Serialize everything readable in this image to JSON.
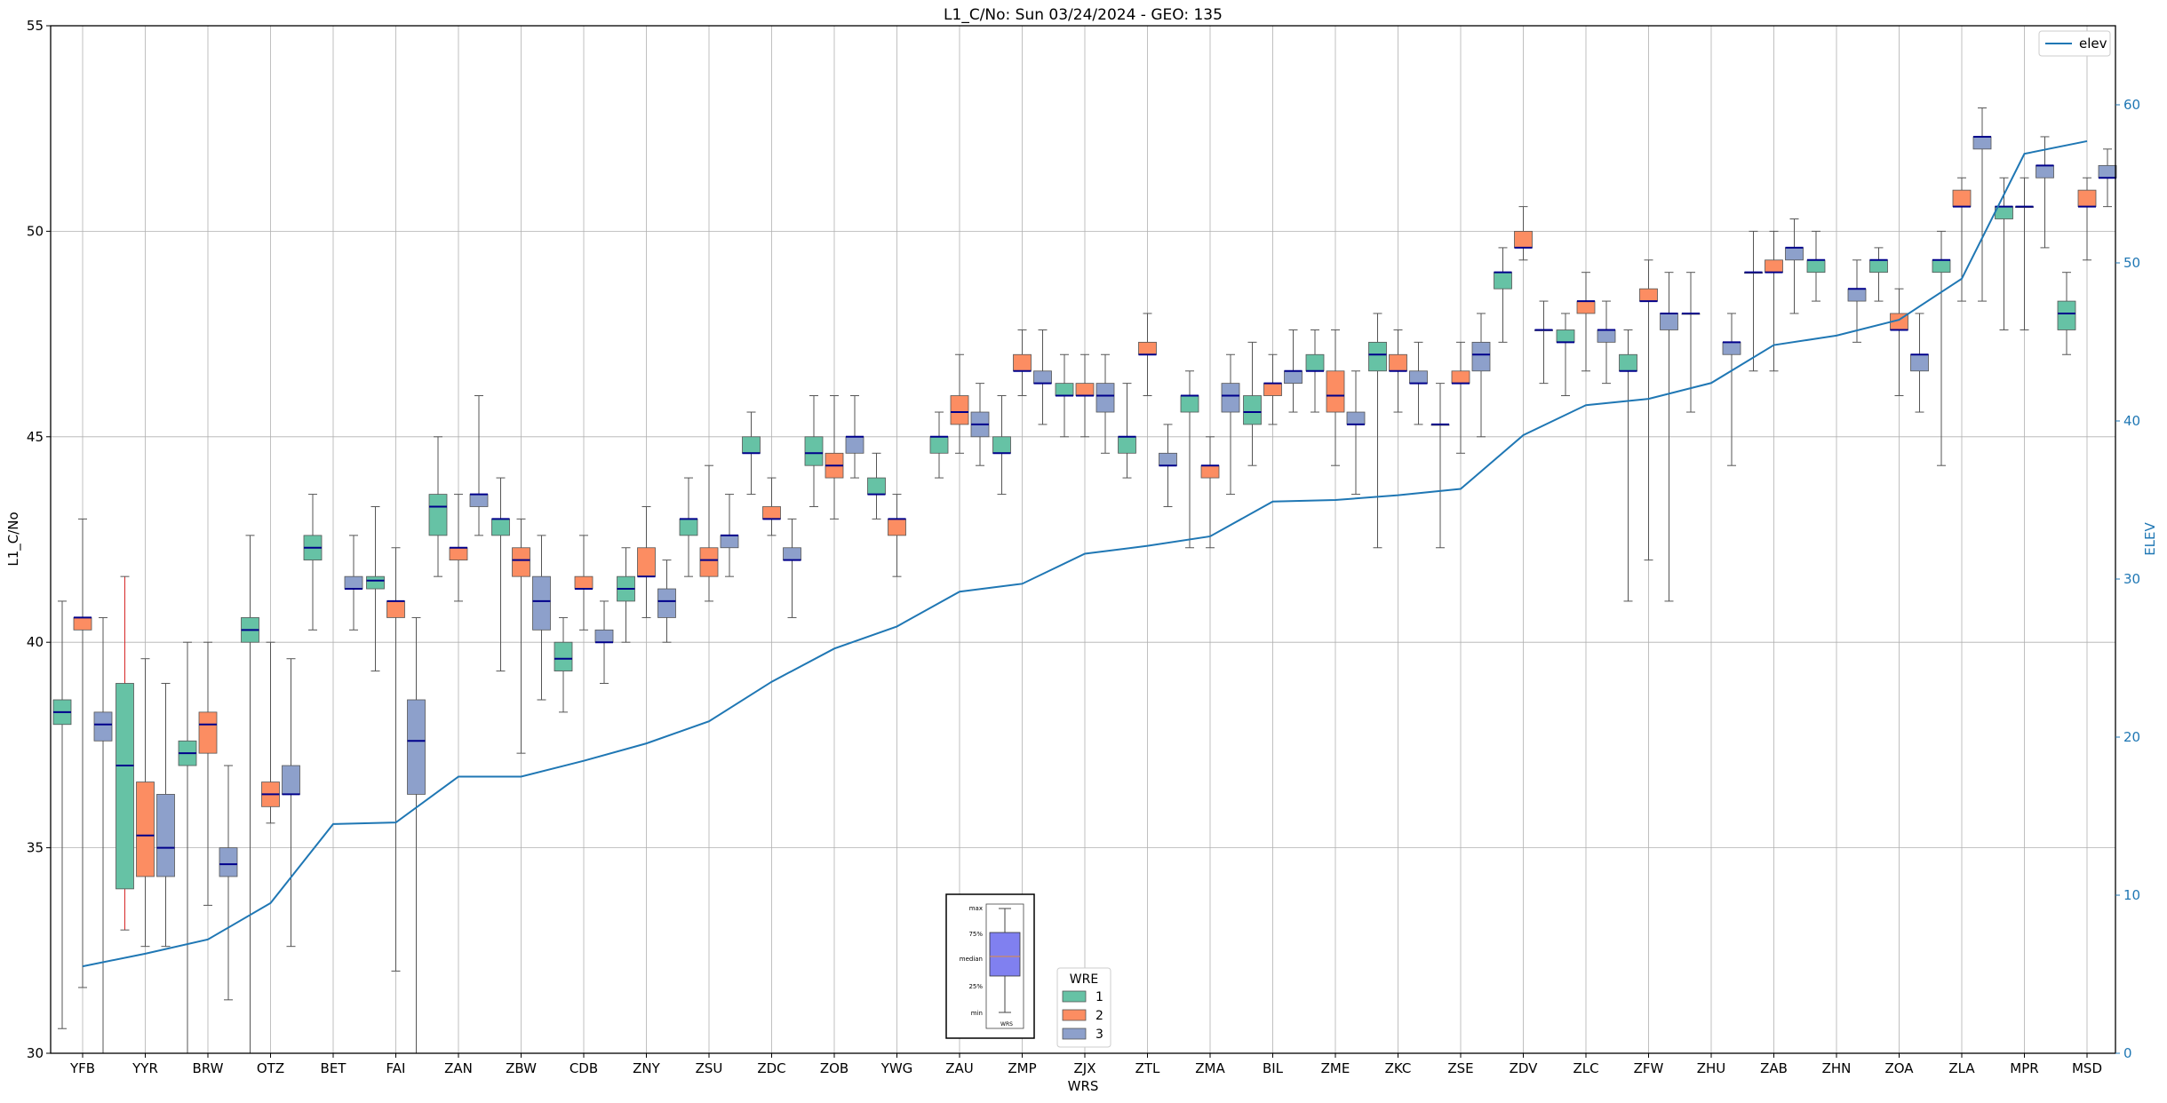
{
  "chart_data": {
    "type": "box",
    "title": "L1_C/No: Sun 03/24/2024 - GEO: 135",
    "xlabel": "WRS",
    "ylabel": "L1_C/No",
    "y2label": "ELEV",
    "ylim": [
      30,
      55
    ],
    "y2lim": [
      0,
      65
    ],
    "yticks": [
      30,
      35,
      40,
      45,
      50,
      55
    ],
    "y2ticks": [
      0,
      10,
      20,
      30,
      40,
      50,
      60
    ],
    "grid": true,
    "categories": [
      "YFB",
      "YYR",
      "BRW",
      "OTZ",
      "BET",
      "FAI",
      "ZAN",
      "ZBW",
      "CDB",
      "ZNY",
      "ZSU",
      "ZDC",
      "ZOB",
      "YWG",
      "ZAU",
      "ZMP",
      "ZJX",
      "ZTL",
      "ZMA",
      "BIL",
      "ZME",
      "ZKC",
      "ZSE",
      "ZDV",
      "ZLC",
      "ZFW",
      "ZHU",
      "ZAB",
      "ZHN",
      "ZOA",
      "ZLA",
      "MPR",
      "MSD"
    ],
    "legend_top": {
      "position": "top-right",
      "entries": [
        {
          "label": "elev",
          "color": "#1f77b4"
        }
      ]
    },
    "legend_wre": {
      "title": "WRE",
      "position": "bottom-center",
      "entries": [
        {
          "label": "1",
          "color": "#66c2a5"
        },
        {
          "label": "2",
          "color": "#fc8d62"
        },
        {
          "label": "3",
          "color": "#8da0cb"
        }
      ]
    },
    "key_inset": {
      "labels": [
        "max",
        "75%",
        "median",
        "25%",
        "min"
      ],
      "xlabel": "WRS",
      "fill": "#8080f0"
    },
    "median_color": "#00008b",
    "series": [
      {
        "name": "1",
        "color": "#66c2a5",
        "boxes": [
          [
            30.6,
            38.0,
            38.3,
            38.6,
            41.0
          ],
          [
            33.0,
            34.0,
            37.0,
            39.0,
            41.6
          ],
          [
            30.0,
            37.0,
            37.3,
            37.6,
            40.0
          ],
          [
            30.0,
            40.0,
            40.3,
            40.6,
            42.6
          ],
          [
            40.3,
            42.0,
            42.3,
            42.6,
            43.6
          ],
          [
            39.3,
            41.3,
            41.5,
            41.6,
            43.3
          ],
          [
            41.6,
            42.6,
            43.3,
            43.6,
            45.0
          ],
          [
            39.3,
            42.6,
            43.0,
            43.0,
            44.0
          ],
          [
            38.3,
            39.3,
            39.6,
            40.0,
            40.6
          ],
          [
            40.0,
            41.0,
            41.3,
            41.6,
            42.3
          ],
          [
            41.6,
            42.6,
            43.0,
            43.0,
            44.0
          ],
          [
            43.6,
            44.6,
            44.6,
            45.0,
            45.6
          ],
          [
            43.3,
            44.3,
            44.6,
            45.0,
            46.0
          ],
          [
            43.0,
            43.6,
            43.6,
            44.0,
            44.6
          ],
          [
            44.0,
            44.6,
            45.0,
            45.0,
            45.6
          ],
          [
            43.6,
            44.6,
            44.6,
            45.0,
            46.0
          ],
          [
            45.0,
            46.0,
            46.0,
            46.3,
            47.0
          ],
          [
            44.0,
            44.6,
            45.0,
            45.0,
            46.3
          ],
          [
            42.3,
            45.6,
            46.0,
            46.0,
            46.6
          ],
          [
            44.3,
            45.3,
            45.6,
            46.0,
            47.3
          ],
          [
            45.6,
            46.6,
            46.6,
            47.0,
            47.6
          ],
          [
            42.3,
            46.6,
            47.0,
            47.3,
            48.0
          ],
          [
            42.3,
            45.3,
            45.3,
            45.3,
            46.3
          ],
          [
            47.3,
            48.6,
            49.0,
            49.0,
            49.6
          ],
          [
            46.0,
            47.3,
            47.3,
            47.6,
            48.0
          ],
          [
            41.0,
            46.6,
            46.6,
            47.0,
            47.6
          ],
          [
            45.6,
            48.0,
            48.0,
            48.0,
            49.0
          ],
          [
            46.6,
            49.0,
            49.0,
            49.0,
            50.0
          ],
          [
            48.3,
            49.0,
            49.3,
            49.3,
            50.0
          ],
          [
            48.3,
            49.0,
            49.3,
            49.3,
            49.6
          ],
          [
            44.3,
            49.0,
            49.3,
            49.3,
            50.0
          ],
          [
            47.6,
            50.3,
            50.6,
            50.6,
            51.3
          ],
          [
            47.0,
            47.6,
            48.0,
            48.3,
            49.0
          ]
        ]
      },
      {
        "name": "2",
        "color": "#fc8d62",
        "boxes": [
          [
            31.6,
            40.3,
            40.6,
            40.6,
            43.0
          ],
          [
            32.6,
            34.3,
            35.3,
            36.6,
            39.6
          ],
          [
            33.6,
            37.3,
            38.0,
            38.3,
            40.0
          ],
          [
            35.6,
            36.0,
            36.3,
            36.6,
            40.0
          ],
          null,
          [
            32.0,
            40.6,
            41.0,
            41.0,
            42.3
          ],
          [
            41.0,
            42.0,
            42.3,
            42.3,
            43.6
          ],
          [
            37.3,
            41.6,
            42.0,
            42.3,
            43.0
          ],
          [
            40.3,
            41.3,
            41.3,
            41.6,
            42.6
          ],
          [
            40.6,
            41.6,
            41.6,
            42.3,
            43.3
          ],
          [
            41.0,
            41.6,
            42.0,
            42.3,
            44.3
          ],
          [
            42.6,
            43.0,
            43.0,
            43.3,
            44.0
          ],
          [
            43.0,
            44.0,
            44.3,
            44.6,
            46.0
          ],
          [
            41.6,
            42.6,
            43.0,
            43.0,
            43.6
          ],
          [
            44.6,
            45.3,
            45.6,
            46.0,
            47.0
          ],
          [
            46.0,
            46.6,
            46.6,
            47.0,
            47.6
          ],
          [
            45.0,
            46.0,
            46.0,
            46.3,
            47.0
          ],
          [
            46.0,
            47.0,
            47.0,
            47.3,
            48.0
          ],
          [
            42.3,
            44.0,
            44.3,
            44.3,
            45.0
          ],
          [
            45.3,
            46.0,
            46.3,
            46.3,
            47.0
          ],
          [
            44.3,
            45.6,
            46.0,
            46.6,
            47.6
          ],
          [
            45.6,
            46.6,
            46.6,
            47.0,
            47.6
          ],
          [
            44.6,
            46.3,
            46.3,
            46.6,
            47.3
          ],
          [
            49.3,
            49.6,
            49.6,
            50.0,
            50.6
          ],
          [
            46.6,
            48.0,
            48.3,
            48.3,
            49.0
          ],
          [
            42.0,
            48.3,
            48.3,
            48.6,
            49.3
          ],
          null,
          [
            46.6,
            49.0,
            49.0,
            49.3,
            50.0
          ],
          null,
          [
            46.0,
            47.6,
            47.6,
            48.0,
            48.6
          ],
          [
            48.3,
            50.6,
            50.6,
            51.0,
            51.3
          ],
          [
            47.6,
            50.6,
            50.6,
            50.6,
            51.3
          ],
          [
            49.3,
            50.6,
            50.6,
            51.0,
            51.3
          ]
        ]
      },
      {
        "name": "3",
        "color": "#8da0cb",
        "boxes": [
          [
            30.0,
            37.6,
            38.0,
            38.3,
            40.6
          ],
          [
            32.6,
            34.3,
            35.0,
            36.3,
            39.0
          ],
          [
            31.3,
            34.3,
            34.6,
            35.0,
            37.0
          ],
          [
            32.6,
            36.3,
            36.3,
            37.0,
            39.6
          ],
          [
            40.3,
            41.3,
            41.3,
            41.6,
            42.6
          ],
          [
            30.0,
            36.3,
            37.6,
            38.6,
            40.6
          ],
          [
            42.6,
            43.3,
            43.6,
            43.6,
            46.0
          ],
          [
            38.6,
            40.3,
            41.0,
            41.6,
            42.6
          ],
          [
            39.0,
            40.0,
            40.0,
            40.3,
            41.0
          ],
          [
            40.0,
            40.6,
            41.0,
            41.3,
            42.0
          ],
          [
            41.6,
            42.3,
            42.6,
            42.6,
            43.6
          ],
          [
            40.6,
            42.0,
            42.0,
            42.3,
            43.0
          ],
          [
            44.0,
            44.6,
            45.0,
            45.0,
            46.0
          ],
          null,
          [
            44.3,
            45.0,
            45.3,
            45.6,
            46.3
          ],
          [
            45.3,
            46.3,
            46.3,
            46.6,
            47.6
          ],
          [
            44.6,
            45.6,
            46.0,
            46.3,
            47.0
          ],
          [
            43.3,
            44.3,
            44.3,
            44.6,
            45.3
          ],
          [
            43.6,
            45.6,
            46.0,
            46.3,
            47.0
          ],
          [
            45.6,
            46.3,
            46.6,
            46.6,
            47.6
          ],
          [
            43.6,
            45.3,
            45.3,
            45.6,
            46.6
          ],
          [
            45.3,
            46.3,
            46.3,
            46.6,
            47.3
          ],
          [
            45.0,
            46.6,
            47.0,
            47.3,
            48.0
          ],
          [
            46.3,
            47.6,
            47.6,
            47.6,
            48.3
          ],
          [
            46.3,
            47.3,
            47.6,
            47.6,
            48.3
          ],
          [
            41.0,
            47.6,
            48.0,
            48.0,
            49.0
          ],
          [
            44.3,
            47.0,
            47.3,
            47.3,
            48.0
          ],
          [
            48.0,
            49.3,
            49.6,
            49.6,
            50.3
          ],
          [
            47.3,
            48.3,
            48.6,
            48.6,
            49.3
          ],
          [
            45.6,
            46.6,
            47.0,
            47.0,
            48.0
          ],
          [
            48.3,
            52.0,
            52.3,
            52.3,
            53.0
          ],
          [
            49.6,
            51.3,
            51.6,
            51.6,
            52.3
          ],
          [
            50.6,
            51.3,
            51.3,
            51.6,
            52.0
          ]
        ]
      }
    ],
    "elev_series": {
      "name": "elev",
      "color": "#1f77b4",
      "values": [
        5.5,
        6.3,
        7.2,
        9.5,
        14.5,
        14.6,
        17.5,
        17.5,
        18.5,
        19.6,
        21.0,
        23.5,
        25.6,
        27.0,
        29.2,
        29.7,
        31.6,
        32.1,
        32.7,
        34.9,
        35.0,
        35.3,
        35.7,
        39.1,
        41.0,
        41.4,
        42.4,
        44.8,
        45.4,
        46.4,
        49.0,
        56.9,
        57.7
      ]
    }
  }
}
